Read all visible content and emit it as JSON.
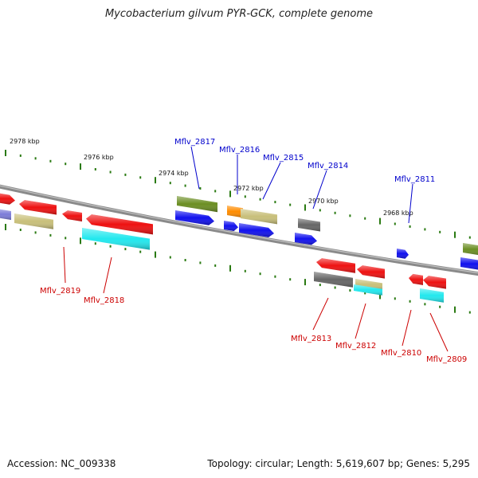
{
  "title": "Mycobacterium gilvum PYR-GCK, complete genome",
  "footer": {
    "accession": "Accession: NC_009338",
    "topology": "Topology: circular; Length: 5,619,607 bp; Genes: 5,295"
  },
  "scale": {
    "labels": [
      "2978 kbp",
      "2976 kbp",
      "2974 kbp",
      "2972 kbp",
      "2970 kbp",
      "2968 kbp"
    ]
  },
  "colors": {
    "backbone": "#8a8a8a",
    "tick": "#2a7a12",
    "forward_label": "#0000cc",
    "reverse_label": "#cc0000",
    "red": "#ee1111",
    "blue": "#1111ee",
    "olive": "#6b8e23",
    "khaki": "#c8bf7a",
    "cyan": "#22e8ee",
    "gray": "#666666",
    "orange": "#ff8c00",
    "slate": "#7b7bd8"
  },
  "genes": {
    "forward": [
      "Mflv_2817",
      "Mflv_2816",
      "Mflv_2815",
      "Mflv_2814",
      "Mflv_2811"
    ],
    "reverse": [
      "Mflv_2819",
      "Mflv_2818",
      "Mflv_2813",
      "Mflv_2812",
      "Mflv_2810",
      "Mflv_2809"
    ]
  }
}
